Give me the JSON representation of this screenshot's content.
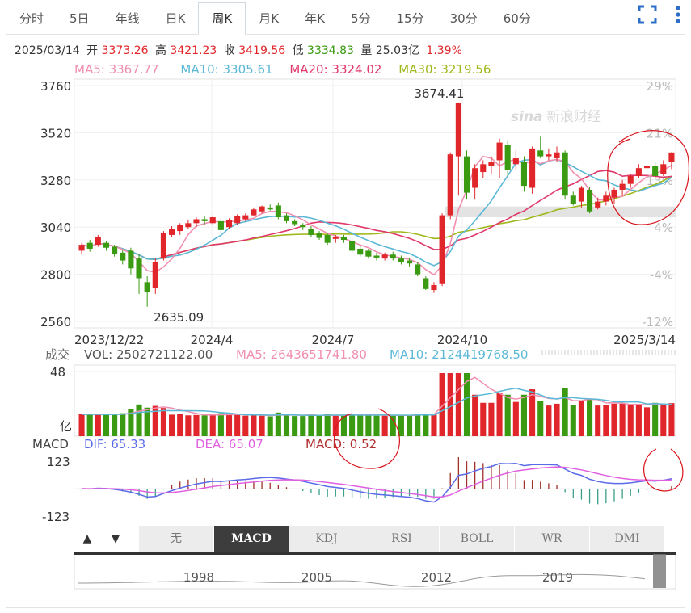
{
  "tabs": [
    "分时",
    "5日",
    "年线",
    "日K",
    "周K",
    "月K",
    "年K",
    "5分",
    "15分",
    "30分",
    "60分"
  ],
  "active_tab": "周K",
  "icons": {
    "fullscreen": "fullscreen-icon",
    "more": "more-vertical-icon"
  },
  "info": {
    "date": "2025/03/14",
    "open_label": "开",
    "open": "3373.26",
    "high_label": "高",
    "high": "3421.23",
    "close_label": "收",
    "close": "3419.56",
    "low_label": "低",
    "low": "3334.83",
    "vol_label": "量",
    "vol": "25.03亿",
    "change": "1.39%"
  },
  "ma": {
    "ma5": "MA5: 3367.77",
    "ma10": "MA10: 3305.61",
    "ma20": "MA20: 3324.02",
    "ma30": "MA30: 3219.56"
  },
  "colors": {
    "up": "#e0262a",
    "down": "#3a9a12",
    "ma5": "#f08fb0",
    "ma10": "#5bb8d6",
    "ma20": "#e0386a",
    "ma30": "#a0b81c",
    "dif": "#5b6be8",
    "dea": "#e060e0",
    "annotation": "#d8141c"
  },
  "watermark": {
    "brand": "sina",
    "text": "新浪财经"
  },
  "volume_panel": {
    "label": "成交",
    "vol": "VOL: 2502721122.00",
    "ma5": "MA5: 2643651741.80",
    "ma10": "MA10: 2124419768.50",
    "top": "48",
    "unit": "亿"
  },
  "macd_panel": {
    "label": "MACD",
    "dif": "DIF: 65.33",
    "dea": "DEA: 65.07",
    "macd": "MACD: 0.52",
    "top": "123",
    "bottom": "-123"
  },
  "bottom_tabs": [
    "无",
    "MACD",
    "KDJ",
    "RSI",
    "BOLL",
    "WR",
    "DMI"
  ],
  "active_bottom_tab": "MACD",
  "nav_arrows": {
    "up": "▲",
    "down": "▼"
  },
  "overview_years": [
    "1998",
    "2005",
    "2012",
    "2019"
  ],
  "chart_data": {
    "type": "candlestick",
    "y_ticks": [
      "3760",
      "3520",
      "3280",
      "3040",
      "2800",
      "2560"
    ],
    "ylim": [
      2560,
      3760
    ],
    "pct_ticks": [
      "29%",
      "21%",
      "13%",
      "4%",
      "-4%",
      "-12%"
    ],
    "x_ticks": [
      "2023/12/22",
      "2024/4",
      "2024/7",
      "2024/10",
      "2025/3/14"
    ],
    "annotations": {
      "max": "3674.41",
      "min": "2635.09"
    },
    "candles": [
      {
        "o": 2920,
        "c": 2950,
        "h": 2960,
        "l": 2900
      },
      {
        "o": 2960,
        "c": 2930,
        "h": 2975,
        "l": 2915
      },
      {
        "o": 2950,
        "c": 2990,
        "h": 3000,
        "l": 2940
      },
      {
        "o": 2960,
        "c": 2935,
        "h": 2970,
        "l": 2920
      },
      {
        "o": 2940,
        "c": 2905,
        "h": 2950,
        "l": 2890
      },
      {
        "o": 2910,
        "c": 2870,
        "h": 2925,
        "l": 2850
      },
      {
        "o": 2920,
        "c": 2830,
        "h": 2935,
        "l": 2800
      },
      {
        "o": 2880,
        "c": 2780,
        "h": 2900,
        "l": 2700
      },
      {
        "o": 2760,
        "c": 2710,
        "h": 2790,
        "l": 2635
      },
      {
        "o": 2730,
        "c": 2860,
        "h": 2880,
        "l": 2700
      },
      {
        "o": 2880,
        "c": 3010,
        "h": 3020,
        "l": 2870
      },
      {
        "o": 3000,
        "c": 3030,
        "h": 3045,
        "l": 2990
      },
      {
        "o": 3020,
        "c": 3050,
        "h": 3060,
        "l": 3000
      },
      {
        "o": 3040,
        "c": 3060,
        "h": 3075,
        "l": 3030
      },
      {
        "o": 3060,
        "c": 3080,
        "h": 3090,
        "l": 3040
      },
      {
        "o": 3080,
        "c": 3070,
        "h": 3095,
        "l": 3050
      },
      {
        "o": 3060,
        "c": 3090,
        "h": 3100,
        "l": 3050
      },
      {
        "o": 3070,
        "c": 3025,
        "h": 3085,
        "l": 3010
      },
      {
        "o": 3040,
        "c": 3075,
        "h": 3085,
        "l": 3030
      },
      {
        "o": 3060,
        "c": 3095,
        "h": 3105,
        "l": 3050
      },
      {
        "o": 3080,
        "c": 3100,
        "h": 3110,
        "l": 3070
      },
      {
        "o": 3100,
        "c": 3130,
        "h": 3140,
        "l": 3095
      },
      {
        "o": 3120,
        "c": 3145,
        "h": 3150,
        "l": 3110
      },
      {
        "o": 3140,
        "c": 3130,
        "h": 3155,
        "l": 3125
      },
      {
        "o": 3150,
        "c": 3090,
        "h": 3165,
        "l": 3080
      },
      {
        "o": 3100,
        "c": 3070,
        "h": 3110,
        "l": 3060
      },
      {
        "o": 3070,
        "c": 3055,
        "h": 3080,
        "l": 3045
      },
      {
        "o": 3050,
        "c": 3040,
        "h": 3060,
        "l": 3025
      },
      {
        "o": 3030,
        "c": 3000,
        "h": 3045,
        "l": 2990
      },
      {
        "o": 3010,
        "c": 2985,
        "h": 3020,
        "l": 2975
      },
      {
        "o": 3000,
        "c": 2960,
        "h": 3010,
        "l": 2950
      },
      {
        "o": 2980,
        "c": 2990,
        "h": 3000,
        "l": 2960
      },
      {
        "o": 2990,
        "c": 2975,
        "h": 3000,
        "l": 2960
      },
      {
        "o": 2970,
        "c": 2920,
        "h": 2980,
        "l": 2910
      },
      {
        "o": 2930,
        "c": 2900,
        "h": 2945,
        "l": 2890
      },
      {
        "o": 2920,
        "c": 2890,
        "h": 2930,
        "l": 2880
      },
      {
        "o": 2895,
        "c": 2885,
        "h": 2910,
        "l": 2870
      },
      {
        "o": 2880,
        "c": 2900,
        "h": 2910,
        "l": 2870
      },
      {
        "o": 2900,
        "c": 2880,
        "h": 2915,
        "l": 2870
      },
      {
        "o": 2880,
        "c": 2860,
        "h": 2895,
        "l": 2850
      },
      {
        "o": 2870,
        "c": 2855,
        "h": 2885,
        "l": 2840
      },
      {
        "o": 2850,
        "c": 2800,
        "h": 2860,
        "l": 2790
      },
      {
        "o": 2780,
        "c": 2725,
        "h": 2790,
        "l": 2720
      },
      {
        "o": 2720,
        "c": 2745,
        "h": 2760,
        "l": 2705
      },
      {
        "o": 2750,
        "c": 3100,
        "h": 3110,
        "l": 2740
      },
      {
        "o": 3100,
        "c": 3410,
        "h": 3420,
        "l": 3080
      },
      {
        "o": 3400,
        "c": 3670,
        "h": 3674.41,
        "l": 3200
      },
      {
        "o": 3400,
        "c": 3215,
        "h": 3430,
        "l": 3180
      },
      {
        "o": 3240,
        "c": 3340,
        "h": 3360,
        "l": 3180
      },
      {
        "o": 3320,
        "c": 3360,
        "h": 3380,
        "l": 3290
      },
      {
        "o": 3350,
        "c": 3370,
        "h": 3400,
        "l": 3310
      },
      {
        "o": 3380,
        "c": 3470,
        "h": 3490,
        "l": 3290
      },
      {
        "o": 3460,
        "c": 3330,
        "h": 3480,
        "l": 3300
      },
      {
        "o": 3360,
        "c": 3390,
        "h": 3430,
        "l": 3330
      },
      {
        "o": 3370,
        "c": 3250,
        "h": 3400,
        "l": 3220
      },
      {
        "o": 3240,
        "c": 3440,
        "h": 3450,
        "l": 3210
      },
      {
        "o": 3430,
        "c": 3400,
        "h": 3500,
        "l": 3390
      },
      {
        "o": 3400,
        "c": 3410,
        "h": 3440,
        "l": 3380
      },
      {
        "o": 3390,
        "c": 3420,
        "h": 3450,
        "l": 3370
      },
      {
        "o": 3420,
        "c": 3200,
        "h": 3430,
        "l": 3180
      },
      {
        "o": 3200,
        "c": 3160,
        "h": 3220,
        "l": 3150
      },
      {
        "o": 3170,
        "c": 3240,
        "h": 3250,
        "l": 3140
      },
      {
        "o": 3230,
        "c": 3120,
        "h": 3245,
        "l": 3110
      },
      {
        "o": 3140,
        "c": 3170,
        "h": 3190,
        "l": 3130
      },
      {
        "o": 3170,
        "c": 3200,
        "h": 3220,
        "l": 3150
      },
      {
        "o": 3190,
        "c": 3230,
        "h": 3240,
        "l": 3160
      },
      {
        "o": 3230,
        "c": 3260,
        "h": 3280,
        "l": 3200
      },
      {
        "o": 3260,
        "c": 3300,
        "h": 3310,
        "l": 3240
      },
      {
        "o": 3300,
        "c": 3340,
        "h": 3360,
        "l": 3290
      },
      {
        "o": 3340,
        "c": 3350,
        "h": 3360,
        "l": 3320
      },
      {
        "o": 3350,
        "c": 3300,
        "h": 3370,
        "l": 3280
      },
      {
        "o": 3310,
        "c": 3360,
        "h": 3380,
        "l": 3300
      },
      {
        "o": 3373.26,
        "c": 3419.56,
        "h": 3421.23,
        "l": 3334.83
      }
    ]
  }
}
